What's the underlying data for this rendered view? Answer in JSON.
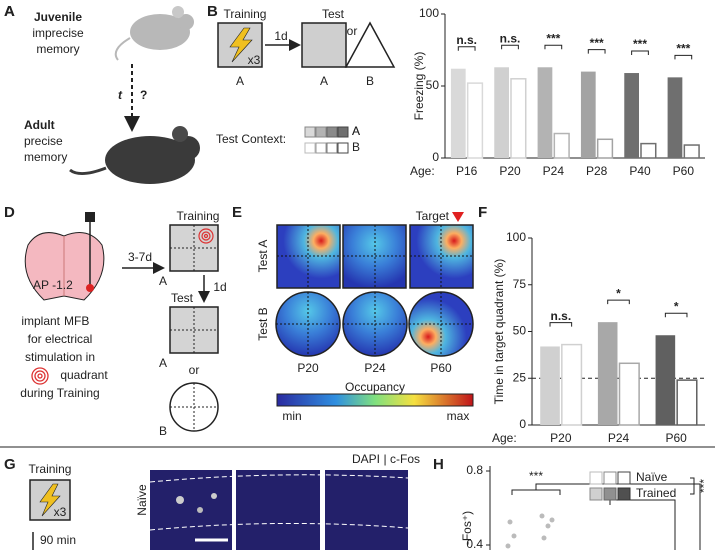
{
  "panels": {
    "a": {
      "letter": "A",
      "juvenile": [
        "Juvenile",
        "imprecise",
        "memory"
      ],
      "t": "t",
      "question": "?",
      "adult": [
        "Adult",
        "precise",
        "memory"
      ]
    },
    "b": {
      "letter": "B",
      "training": "Training",
      "x3": "x3",
      "delay": "1d",
      "test": "Test",
      "or": "or",
      "contexts": [
        "A",
        "A",
        "B"
      ],
      "legend_title": "Test Context:"
    },
    "d": {
      "letter": "D",
      "ap": "AP -1.2",
      "implant": "implant",
      "mfb": "MFB",
      "lines": [
        "for electrical",
        "stimulation in",
        "quadrant",
        "during Training"
      ],
      "delay1": "3-7d",
      "training": "Training",
      "delay2": "1d",
      "test": "Test",
      "or": "or",
      "contexts": [
        "A",
        "A",
        "B"
      ]
    },
    "e": {
      "letter": "E",
      "target": "Target",
      "rows": [
        "Test A",
        "Test B"
      ],
      "ages": [
        "P20",
        "P24",
        "P60"
      ],
      "colorbar_title": "Occupancy",
      "min": "min",
      "max": "max"
    },
    "f": {
      "letter": "F"
    },
    "g": {
      "letter": "G",
      "training": "Training",
      "x3": "x3",
      "delay": "90 min",
      "stain1": "DAPI",
      "separator": "|",
      "stain2": "c-Fos",
      "row": "Naïve"
    },
    "h": {
      "letter": "H",
      "yticks": [
        "0.8",
        "0.4"
      ],
      "y_label": "-Fos⁺)",
      "sig_left": "***",
      "legend": [
        "Naïve",
        "Trained"
      ],
      "sig_right": "***"
    }
  },
  "chart_data": [
    {
      "type": "bar",
      "y_label": "Freezing (%)",
      "x_label": "Age:",
      "categories": [
        "P16",
        "P20",
        "P24",
        "P28",
        "P40",
        "P60"
      ],
      "series": [
        {
          "name": "A",
          "colors": [
            "#d9d9d9",
            "#d0d0d0",
            "#b3b3b3",
            "#a3a3a3",
            "#6f6f6f",
            "#6f6f6f"
          ],
          "values": [
            62,
            63,
            63,
            60,
            59,
            56
          ]
        },
        {
          "name": "B",
          "fill": "#ffffff",
          "colors": [
            "#d9d9d9",
            "#d0d0d0",
            "#b3b3b3",
            "#a3a3a3",
            "#6f6f6f",
            "#6f6f6f"
          ],
          "values": [
            52,
            55,
            17,
            13,
            10,
            9
          ]
        }
      ],
      "significance": [
        "n.s.",
        "n.s.",
        "***",
        "***",
        "***",
        "***"
      ],
      "ylim": [
        0,
        100
      ],
      "yticks": [
        0,
        50,
        100
      ]
    },
    {
      "type": "bar",
      "y_label": "Time in target quadrant (%)",
      "x_label": "Age:",
      "categories": [
        "P20",
        "P24",
        "P60"
      ],
      "series": [
        {
          "name": "A",
          "colors": [
            "#d0d0d0",
            "#a8a8a8",
            "#606060"
          ],
          "values": [
            42,
            55,
            48
          ]
        },
        {
          "name": "B",
          "fill": "#ffffff",
          "colors": [
            "#d0d0d0",
            "#a8a8a8",
            "#606060"
          ],
          "values": [
            43,
            33,
            24
          ]
        }
      ],
      "significance": [
        "n.s.",
        "*",
        "*"
      ],
      "reference_line": 25,
      "ylim": [
        0,
        100
      ],
      "yticks": [
        0,
        25,
        50,
        75,
        100
      ]
    }
  ]
}
